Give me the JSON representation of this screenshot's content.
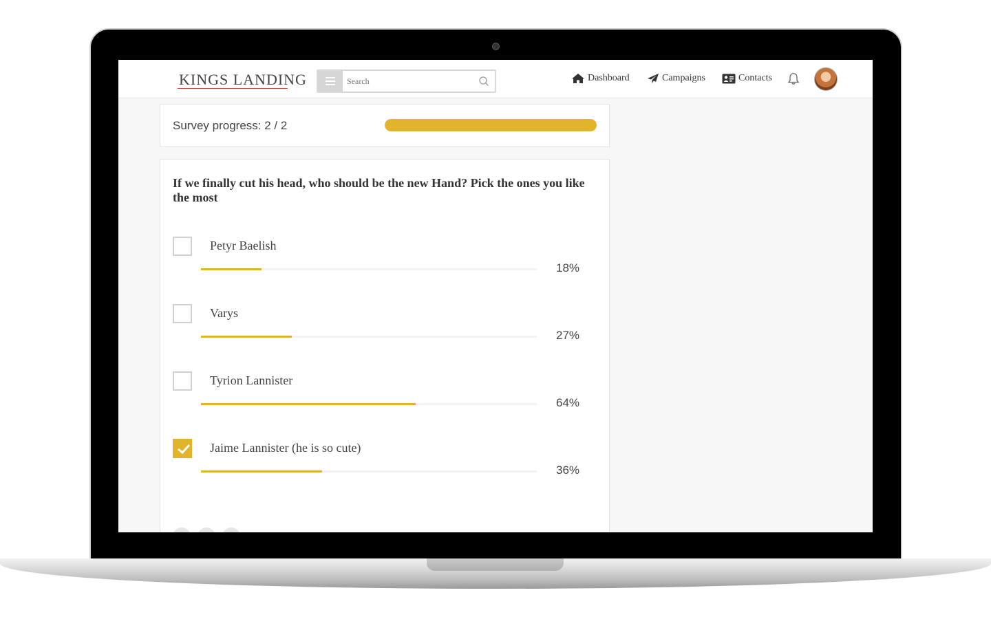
{
  "header": {
    "logo_text": "KINGS LANDING",
    "search_placeholder": "Search",
    "nav": [
      {
        "label": "Dashboard",
        "icon": "home-icon"
      },
      {
        "label": "Campaigns",
        "icon": "paper-plane-icon"
      },
      {
        "label": "Contacts",
        "icon": "address-card-icon"
      }
    ],
    "bell_icon": "bell-icon",
    "avatar": "user-avatar"
  },
  "progress": {
    "label": "Survey progress: 2 / 2",
    "fraction": 1.0
  },
  "question": {
    "text": "If we finally cut his head, who should be the new Hand? Pick the ones you like the most",
    "options": [
      {
        "label": "Petyr Baelish",
        "percent": 18,
        "percent_text": "18%",
        "checked": false
      },
      {
        "label": "Varys",
        "percent": 27,
        "percent_text": "27%",
        "checked": false
      },
      {
        "label": "Tyrion Lannister",
        "percent": 64,
        "percent_text": "64%",
        "checked": false
      },
      {
        "label": "Jaime Lannister (he is so cute)",
        "percent": 36,
        "percent_text": "36%",
        "checked": true
      }
    ]
  },
  "colors": {
    "accent": "#e2b42c",
    "track": "#f2f2f2",
    "text": "#444444"
  }
}
